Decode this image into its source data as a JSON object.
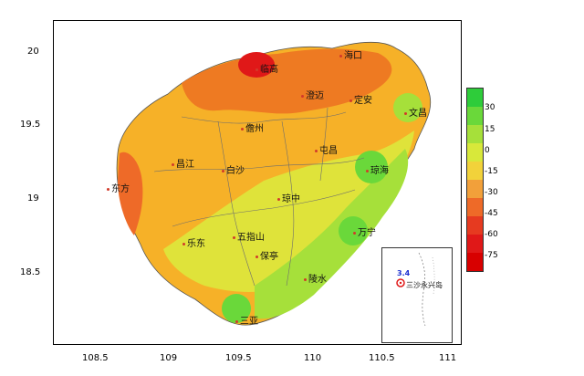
{
  "axes": {
    "y_ticks": [
      "20",
      "19.5",
      "19",
      "18.5"
    ],
    "x_ticks": [
      "108.5",
      "109",
      "109.5",
      "110",
      "110.5",
      "111"
    ]
  },
  "cities": [
    {
      "name": "海口"
    },
    {
      "name": "临高"
    },
    {
      "name": "澄迈"
    },
    {
      "name": "定安"
    },
    {
      "name": "文昌"
    },
    {
      "name": "儋州"
    },
    {
      "name": "屯昌"
    },
    {
      "name": "昌江"
    },
    {
      "name": "白沙"
    },
    {
      "name": "琼海"
    },
    {
      "name": "东方"
    },
    {
      "name": "琼中"
    },
    {
      "name": "五指山"
    },
    {
      "name": "万宁"
    },
    {
      "name": "乐东"
    },
    {
      "name": "保亭"
    },
    {
      "name": "陵水"
    },
    {
      "name": "三亚"
    }
  ],
  "inset": {
    "value": "3.4",
    "label": "三沙永兴岛"
  },
  "legend": {
    "ticks": [
      "30",
      "15",
      "0",
      "-15",
      "-30",
      "-45",
      "-60",
      "-75"
    ],
    "colors": [
      "#2ecc3a",
      "#6ad83a",
      "#a6e03a",
      "#d8e83a",
      "#f2d23a",
      "#f2a03a",
      "#ee6a28",
      "#e63a20",
      "#e01818",
      "#d80000"
    ]
  }
}
